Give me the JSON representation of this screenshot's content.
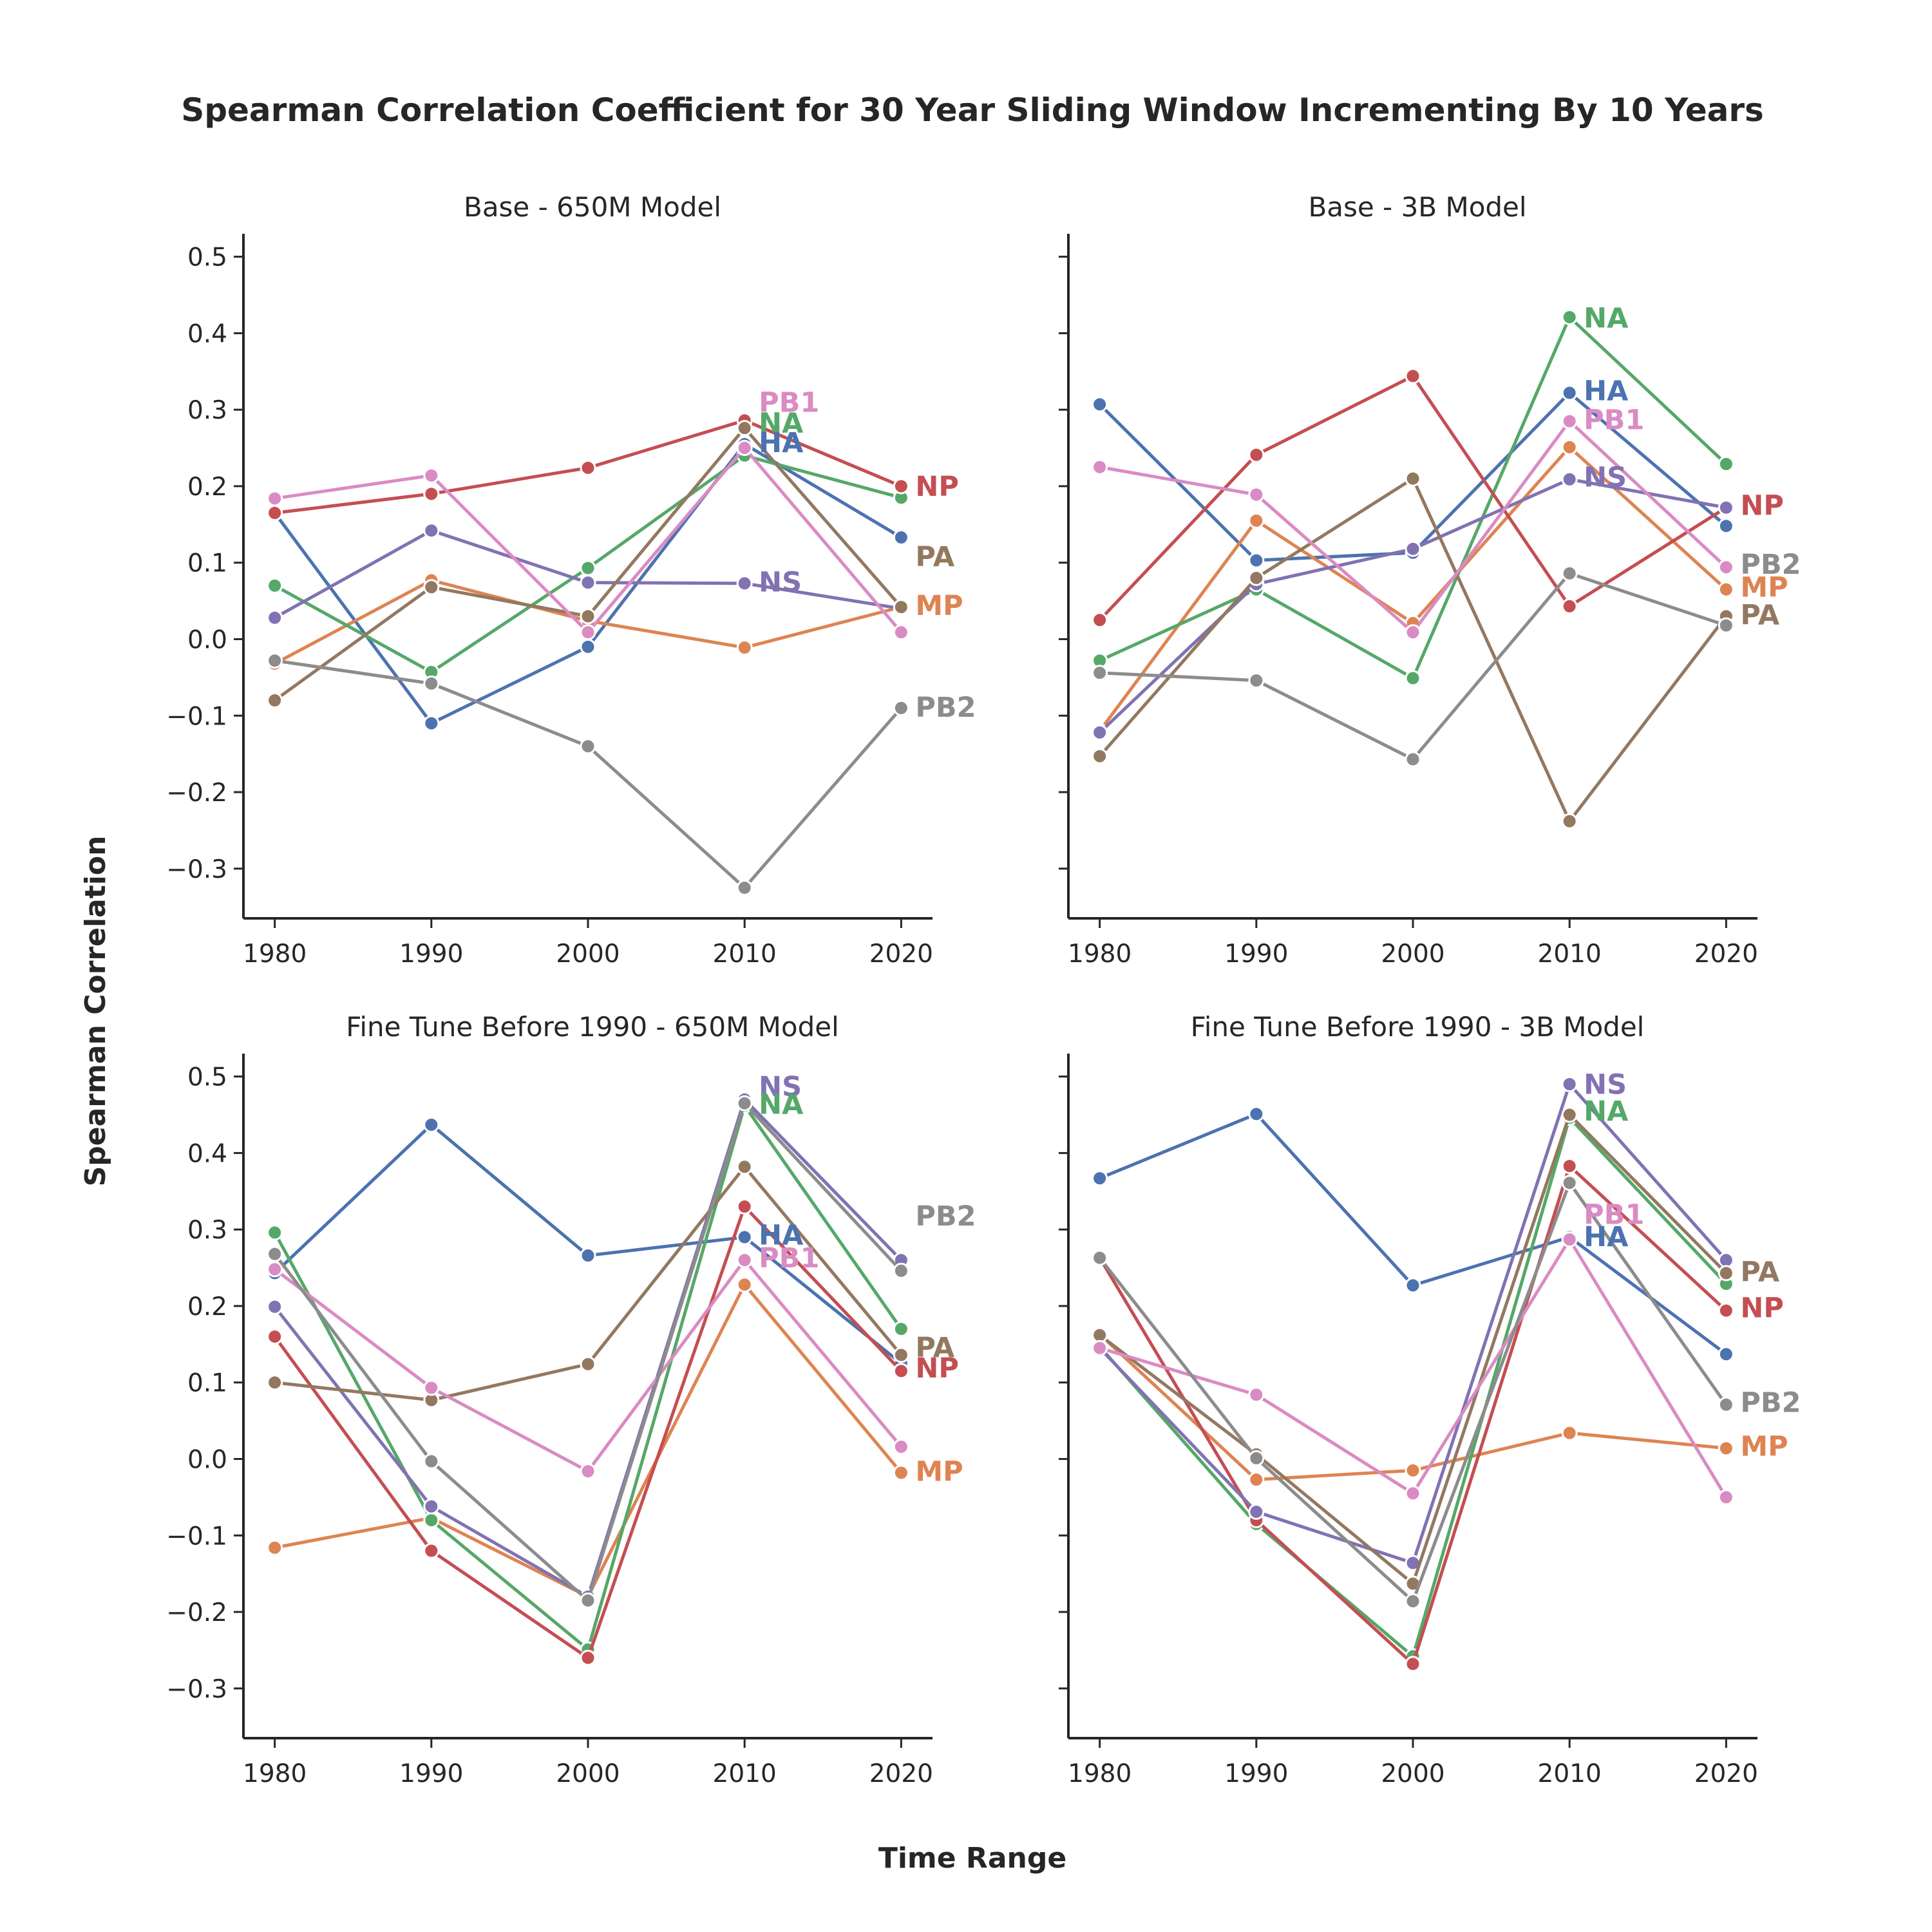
{
  "figure": {
    "title": "Spearman Correlation Coefficient for 30 Year Sliding Window Incrementing By 10 Years",
    "xlabel": "Time Range",
    "ylabel": "Spearman Correlation"
  },
  "colors": {
    "HA": "#4c72b0",
    "MP": "#dd8452",
    "NA": "#55a868",
    "NP": "#c44e52",
    "NS": "#8172b3",
    "PA": "#937860",
    "PB1": "#da8bc3",
    "PB2": "#8c8c8c"
  },
  "chart_data": [
    {
      "type": "line",
      "title": "Base - 650M Model",
      "x": [
        1980,
        1990,
        2000,
        2010,
        2020
      ],
      "xticks": [
        "1980",
        "1990",
        "2000",
        "2010",
        "2020"
      ],
      "yticks": [
        "0.5",
        "0.4",
        "0.3",
        "0.2",
        "0.1",
        "0.0",
        "−0.1",
        "−0.2",
        "−0.3"
      ],
      "ylim": [
        -0.365,
        0.53
      ],
      "show_ytick_labels": true,
      "series": [
        {
          "name": "HA",
          "values": [
            0.165,
            -0.11,
            -0.01,
            0.255,
            0.133
          ]
        },
        {
          "name": "MP",
          "values": [
            -0.032,
            0.077,
            0.024,
            -0.011,
            0.042
          ]
        },
        {
          "name": "NA",
          "values": [
            0.07,
            -0.043,
            0.093,
            0.24,
            0.185
          ]
        },
        {
          "name": "NP",
          "values": [
            0.165,
            0.19,
            0.224,
            0.286,
            0.2
          ]
        },
        {
          "name": "NS",
          "values": [
            0.028,
            0.142,
            0.074,
            0.073,
            0.04
          ]
        },
        {
          "name": "PA",
          "values": [
            -0.08,
            0.068,
            0.03,
            0.276,
            0.042
          ]
        },
        {
          "name": "PB1",
          "values": [
            0.184,
            0.214,
            0.009,
            0.25,
            0.009
          ]
        },
        {
          "name": "PB2",
          "values": [
            -0.028,
            -0.058,
            -0.14,
            -0.325,
            -0.09
          ]
        }
      ],
      "left_labels": [
        {
          "name": "PB1",
          "y": 0.31
        },
        {
          "name": "NA",
          "y": 0.283
        },
        {
          "name": "HA",
          "y": 0.257
        },
        {
          "name": "NS",
          "y": 0.075
        }
      ],
      "right_labels": [
        {
          "name": "NP",
          "y": 0.2
        },
        {
          "name": "PA",
          "y": 0.108
        },
        {
          "name": "MP",
          "y": 0.044
        },
        {
          "name": "PB2",
          "y": -0.089
        }
      ]
    },
    {
      "type": "line",
      "title": "Base - 3B Model",
      "x": [
        1980,
        1990,
        2000,
        2010,
        2020
      ],
      "xticks": [
        "1980",
        "1990",
        "2000",
        "2010",
        "2020"
      ],
      "yticks": [
        "0.5",
        "0.4",
        "0.3",
        "0.2",
        "0.1",
        "0.0",
        "−0.1",
        "−0.2",
        "−0.3"
      ],
      "ylim": [
        -0.365,
        0.53
      ],
      "show_ytick_labels": false,
      "series": [
        {
          "name": "HA",
          "values": [
            0.307,
            0.103,
            0.113,
            0.322,
            0.148
          ]
        },
        {
          "name": "MP",
          "values": [
            -0.12,
            0.155,
            0.021,
            0.251,
            0.065
          ]
        },
        {
          "name": "NA",
          "values": [
            -0.028,
            0.065,
            -0.051,
            0.421,
            0.229
          ]
        },
        {
          "name": "NP",
          "values": [
            0.025,
            0.241,
            0.344,
            0.043,
            0.172
          ]
        },
        {
          "name": "NS",
          "values": [
            -0.122,
            0.072,
            0.118,
            0.209,
            0.172
          ]
        },
        {
          "name": "PA",
          "values": [
            -0.153,
            0.08,
            0.21,
            -0.238,
            0.03
          ]
        },
        {
          "name": "PB1",
          "values": [
            0.225,
            0.189,
            0.009,
            0.285,
            0.094
          ]
        },
        {
          "name": "PB2",
          "values": [
            -0.044,
            -0.054,
            -0.157,
            0.086,
            0.018
          ]
        }
      ],
      "left_labels": [
        {
          "name": "NA",
          "y": 0.42
        },
        {
          "name": "HA",
          "y": 0.325
        },
        {
          "name": "PB1",
          "y": 0.287
        },
        {
          "name": "NS",
          "y": 0.212
        }
      ],
      "right_labels": [
        {
          "name": "NP",
          "y": 0.175
        },
        {
          "name": "PB2",
          "y": 0.098
        },
        {
          "name": "MP",
          "y": 0.068
        },
        {
          "name": "PA",
          "y": 0.032
        }
      ]
    },
    {
      "type": "line",
      "title": "Fine Tune Before 1990 - 650M Model",
      "x": [
        1980,
        1990,
        2000,
        2010,
        2020
      ],
      "xticks": [
        "1980",
        "1990",
        "2000",
        "2010",
        "2020"
      ],
      "yticks": [
        "0.5",
        "0.4",
        "0.3",
        "0.2",
        "0.1",
        "0.0",
        "−0.1",
        "−0.2",
        "−0.3"
      ],
      "ylim": [
        -0.365,
        0.53
      ],
      "show_ytick_labels": true,
      "series": [
        {
          "name": "HA",
          "values": [
            0.243,
            0.437,
            0.266,
            0.29,
            0.125
          ]
        },
        {
          "name": "MP",
          "values": [
            -0.116,
            -0.077,
            -0.18,
            0.228,
            -0.018
          ]
        },
        {
          "name": "NA",
          "values": [
            0.296,
            -0.08,
            -0.249,
            0.462,
            0.17
          ]
        },
        {
          "name": "NP",
          "values": [
            0.16,
            -0.12,
            -0.26,
            0.33,
            0.115
          ]
        },
        {
          "name": "NS",
          "values": [
            0.199,
            -0.062,
            -0.18,
            0.47,
            0.26
          ]
        },
        {
          "name": "PA",
          "values": [
            0.1,
            0.077,
            0.124,
            0.382,
            0.136
          ]
        },
        {
          "name": "PB1",
          "values": [
            0.248,
            0.093,
            -0.016,
            0.26,
            0.016
          ]
        },
        {
          "name": "PB2",
          "values": [
            0.268,
            -0.003,
            -0.185,
            0.465,
            0.246
          ]
        }
      ],
      "left_labels": [
        {
          "name": "NS",
          "y": 0.487
        },
        {
          "name": "NA",
          "y": 0.464
        },
        {
          "name": "HA",
          "y": 0.293
        },
        {
          "name": "PB1",
          "y": 0.263
        }
      ],
      "right_labels": [
        {
          "name": "PB2",
          "y": 0.318
        },
        {
          "name": "PA",
          "y": 0.146
        },
        {
          "name": "NP",
          "y": 0.119
        },
        {
          "name": "MP",
          "y": -0.016
        }
      ]
    },
    {
      "type": "line",
      "title": "Fine Tune Before 1990 - 3B Model",
      "x": [
        1980,
        1990,
        2000,
        2010,
        2020
      ],
      "xticks": [
        "1980",
        "1990",
        "2000",
        "2010",
        "2020"
      ],
      "yticks": [
        "0.5",
        "0.4",
        "0.3",
        "0.2",
        "0.1",
        "0.0",
        "−0.1",
        "−0.2",
        "−0.3"
      ],
      "ylim": [
        -0.365,
        0.53
      ],
      "show_ytick_labels": false,
      "series": [
        {
          "name": "HA",
          "values": [
            0.367,
            0.451,
            0.227,
            0.29,
            0.137
          ]
        },
        {
          "name": "MP",
          "values": [
            0.163,
            -0.027,
            -0.015,
            0.034,
            0.014
          ]
        },
        {
          "name": "NA",
          "values": [
            0.147,
            -0.085,
            -0.258,
            0.446,
            0.229
          ]
        },
        {
          "name": "NP",
          "values": [
            0.263,
            -0.08,
            -0.268,
            0.383,
            0.194
          ]
        },
        {
          "name": "NS",
          "values": [
            0.145,
            -0.069,
            -0.136,
            0.49,
            0.26
          ]
        },
        {
          "name": "PA",
          "values": [
            0.162,
            0.006,
            -0.163,
            0.45,
            0.243
          ]
        },
        {
          "name": "PB1",
          "values": [
            0.145,
            0.084,
            -0.045,
            0.287,
            -0.05
          ]
        },
        {
          "name": "PB2",
          "values": [
            0.263,
            0.001,
            -0.186,
            0.361,
            0.071
          ]
        }
      ],
      "left_labels": [
        {
          "name": "NS",
          "y": 0.49
        },
        {
          "name": "NA",
          "y": 0.455
        },
        {
          "name": "PB1",
          "y": 0.32
        },
        {
          "name": "HA",
          "y": 0.291
        }
      ],
      "right_labels": [
        {
          "name": "PA",
          "y": 0.245
        },
        {
          "name": "NP",
          "y": 0.198
        },
        {
          "name": "PB2",
          "y": 0.074
        },
        {
          "name": "MP",
          "y": 0.017
        }
      ]
    }
  ]
}
